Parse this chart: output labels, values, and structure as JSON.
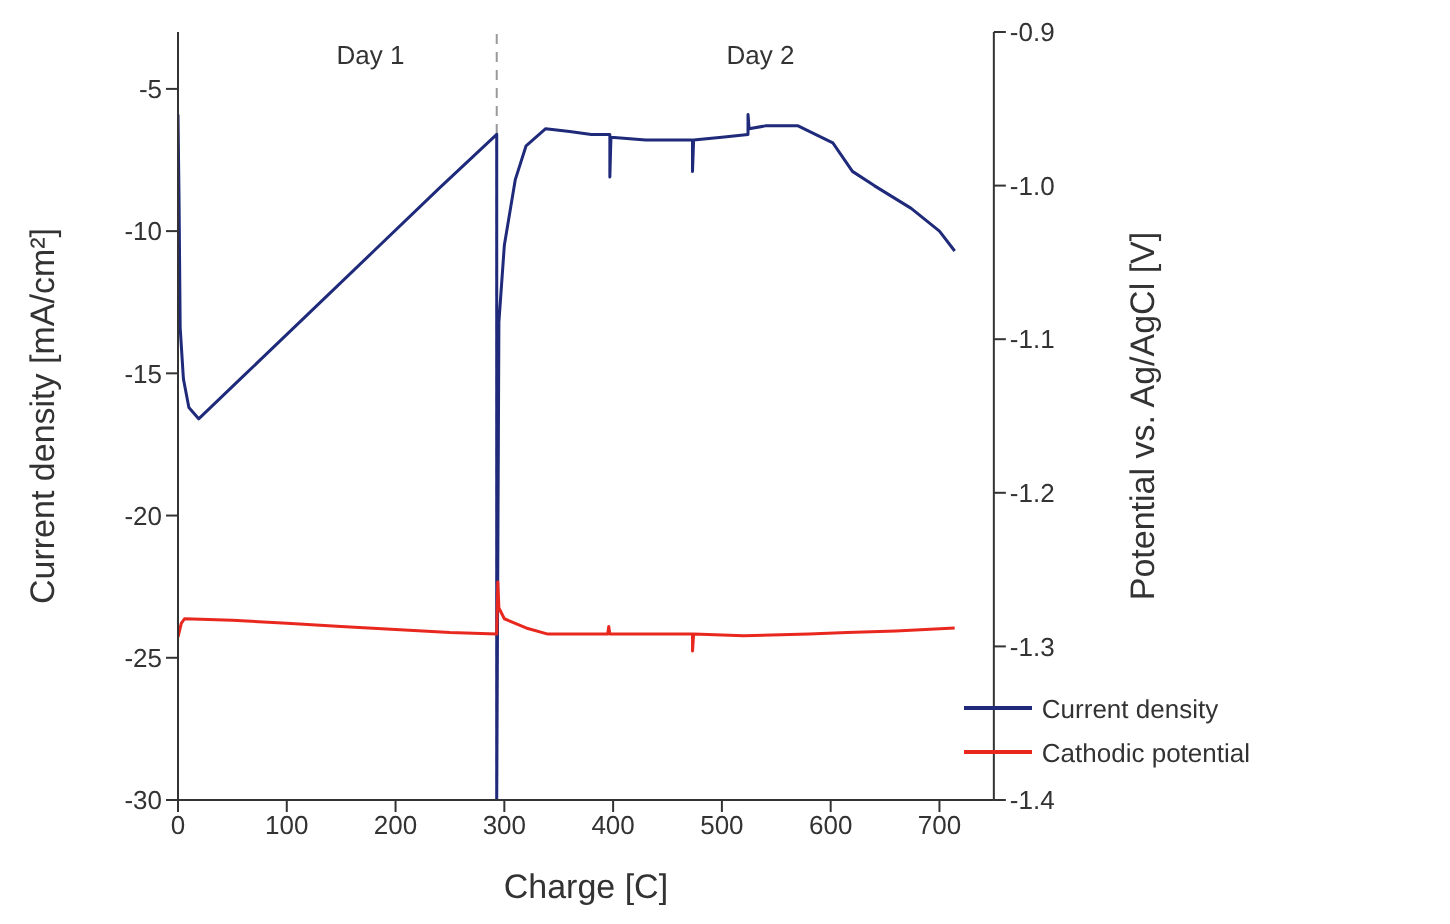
{
  "chart_data": {
    "type": "line",
    "xlabel": "Charge [C]",
    "ylabel": "Current density [mA/cm²]",
    "y2label": "Potential vs. Ag/AgCl [V]",
    "xlim": [
      0,
      750
    ],
    "xticks": [
      0,
      100,
      200,
      300,
      400,
      500,
      600,
      700
    ],
    "ylim": [
      -30,
      -3
    ],
    "yticks": [
      -30,
      -25,
      -20,
      -15,
      -10,
      -5
    ],
    "y2lim": [
      -1.4,
      -0.9
    ],
    "y2ticks": [
      -1.4,
      -1.3,
      -1.2,
      -1.1,
      {
        "value": -1,
        "label": "-1.0"
      },
      -0.9
    ],
    "series": [
      {
        "name": "Current density",
        "color": "#1f2a7a",
        "x": [
          0,
          1,
          2,
          5,
          10,
          19,
          60,
          120,
          180,
          240,
          293,
          293,
          295,
          300,
          310,
          320,
          338,
          360,
          380,
          397,
          397,
          398,
          430,
          470,
          473,
          473,
          474,
          500,
          524,
          524,
          525,
          540,
          570,
          602,
          620,
          640,
          674,
          700,
          714
        ],
        "values": [
          -5.9,
          -9,
          -13.4,
          -15.2,
          -16.2,
          -16.6,
          -15.1,
          -12.9,
          -10.7,
          -8.5,
          -6.6,
          -30,
          -13.2,
          -10.5,
          -8.2,
          -7,
          -6.4,
          -6.5,
          -6.6,
          -6.6,
          -8.1,
          -6.7,
          -6.8,
          -6.8,
          -6.8,
          -7.9,
          -6.8,
          -6.7,
          -6.6,
          -5.9,
          -6.4,
          -6.3,
          -6.3,
          -6.9,
          -7.9,
          -8.4,
          -9.2,
          -10,
          -10.7
        ]
      },
      {
        "name": "Cathodic potential",
        "color": "#e8281e",
        "axis": "y2",
        "x": [
          0,
          3,
          6,
          50,
          100,
          150,
          200,
          250,
          293,
          294,
          295,
          300,
          320,
          340,
          395,
          396,
          397,
          450,
          473,
          473,
          474,
          520,
          580,
          615,
          660,
          714
        ],
        "values": [
          -1.294,
          -1.285,
          -1.282,
          -1.283,
          -1.285,
          -1.287,
          -1.289,
          -1.291,
          -1.292,
          -1.258,
          -1.275,
          -1.282,
          -1.288,
          -1.292,
          -1.292,
          -1.287,
          -1.292,
          -1.292,
          -1.292,
          -1.303,
          -1.292,
          -1.293,
          -1.292,
          -1.291,
          -1.29,
          -1.288
        ]
      }
    ],
    "ref_lines": [
      {
        "axis": "x",
        "value": 293,
        "color": "#999999",
        "line_style": "dashed"
      }
    ],
    "annotations": [
      "Day 1",
      "Day 2"
    ],
    "legend": "bottom right",
    "grid": false,
    "marker": "none",
    "line_style": "solid"
  }
}
